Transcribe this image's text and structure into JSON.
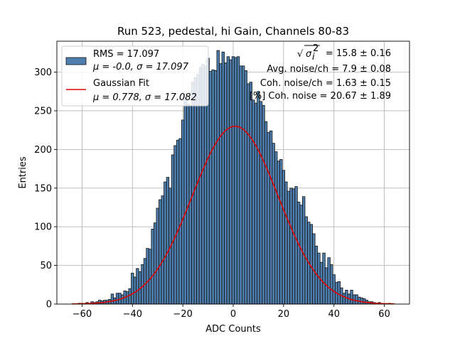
{
  "chart_data": {
    "type": "bar",
    "title": "Run 523, pedestal, hi Gain, Channels 80-83",
    "xlabel": "ADC Counts",
    "ylabel": "Entries",
    "xlim": [
      -70,
      70
    ],
    "ylim": [
      0,
      340
    ],
    "xticks": [
      -60,
      -40,
      -20,
      0,
      20,
      40,
      60
    ],
    "yticks": [
      0,
      50,
      100,
      150,
      200,
      250,
      300
    ],
    "xtick_labels": [
      "−60",
      "−40",
      "−20",
      "0",
      "20",
      "40",
      "60"
    ],
    "ytick_labels": [
      "0",
      "50",
      "100",
      "150",
      "200",
      "250",
      "300"
    ],
    "grid": true,
    "legend_position": "top-left",
    "legend": {
      "hist_line1": "RMS = 17.097",
      "hist_line2_mu": "μ = -0.0,",
      "hist_line2_sigma": "σ = 17.097",
      "fit_line1": "Gaussian Fit",
      "fit_line2_mu": "μ = 0.778,",
      "fit_line2_sigma": "σ = 17.082"
    },
    "annotations": {
      "line1_value": "= 15.8 ± 0.16",
      "line2": "Avg. noise/ch = 7.9 ± 0.08",
      "line3": "Coh. noise/ch = 1.63 ± 0.15",
      "line4": "[%] Coh. noise = 20.67 ± 1.89"
    },
    "colors": {
      "bar": "#4f7fae",
      "fit": "#e00000"
    },
    "histogram": {
      "bin_width": 1,
      "bin_centers": [
        -63,
        -62,
        -61,
        -60,
        -59,
        -58,
        -57,
        -56,
        -55,
        -54,
        -53,
        -52,
        -51,
        -50,
        -49,
        -48,
        -47,
        -46,
        -45,
        -44,
        -43,
        -42,
        -41,
        -40,
        -39,
        -38,
        -37,
        -36,
        -35,
        -34,
        -33,
        -32,
        -31,
        -30,
        -29,
        -28,
        -27,
        -26,
        -25,
        -24,
        -23,
        -22,
        -21,
        -20,
        -19,
        -18,
        -17,
        -16,
        -15,
        -14,
        -13,
        -12,
        -11,
        -10,
        -9,
        -8,
        -7,
        -6,
        -5,
        -4,
        -3,
        -2,
        -1,
        0,
        1,
        2,
        3,
        4,
        5,
        6,
        7,
        8,
        9,
        10,
        11,
        12,
        13,
        14,
        15,
        16,
        17,
        18,
        19,
        20,
        21,
        22,
        23,
        24,
        25,
        26,
        27,
        28,
        29,
        30,
        31,
        32,
        33,
        34,
        35,
        36,
        37,
        38,
        39,
        40,
        41,
        42,
        43,
        44,
        45,
        46,
        47,
        48,
        49,
        50,
        51,
        52,
        53,
        54,
        55,
        56,
        57,
        58,
        59,
        60,
        61,
        62,
        63
      ],
      "counts": [
        0,
        0,
        1,
        1,
        0,
        2,
        1,
        3,
        2,
        3,
        5,
        4,
        5,
        5,
        6,
        13,
        8,
        14,
        14,
        12,
        17,
        16,
        20,
        40,
        35,
        46,
        42,
        51,
        59,
        72,
        71,
        97,
        105,
        124,
        135,
        140,
        158,
        164,
        150,
        193,
        205,
        212,
        214,
        238,
        272,
        259,
        257,
        287,
        293,
        297,
        306,
        310,
        308,
        318,
        301,
        303,
        302,
        328,
        311,
        326,
        312,
        320,
        316,
        320,
        319,
        320,
        308,
        308,
        302,
        285,
        287,
        264,
        260,
        275,
        262,
        257,
        236,
        222,
        224,
        208,
        197,
        185,
        187,
        173,
        158,
        146,
        150,
        149,
        152,
        132,
        128,
        139,
        113,
        106,
        103,
        91,
        75,
        66,
        54,
        66,
        47,
        60,
        51,
        38,
        28,
        29,
        21,
        14,
        18,
        13,
        18,
        12,
        12,
        9,
        8,
        7,
        5,
        3,
        3,
        2,
        1,
        2,
        1,
        0,
        0,
        1,
        0
      ]
    },
    "gaussian_fit": {
      "amplitude": 230,
      "mu": 0.778,
      "sigma": 17.082,
      "x_range": [
        -64,
        64
      ]
    }
  }
}
